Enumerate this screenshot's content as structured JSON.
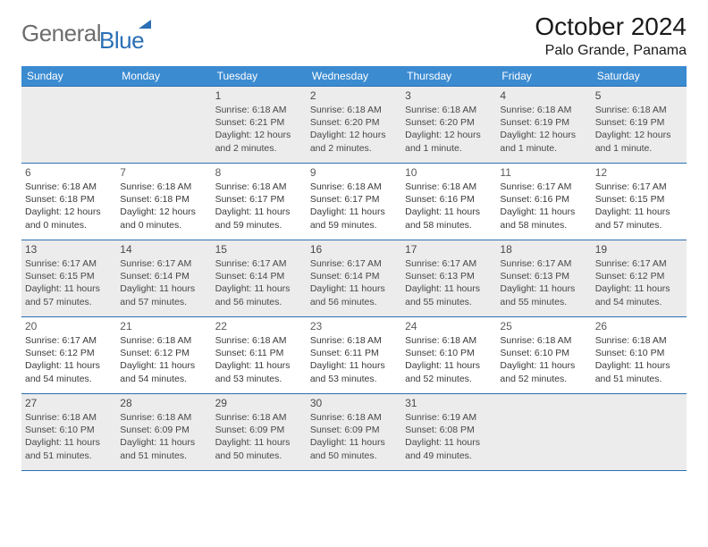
{
  "logo": {
    "word1": "General",
    "word2": "Blue"
  },
  "title": {
    "month": "October 2024",
    "location": "Palo Grande, Panama"
  },
  "colors": {
    "header_bg": "#3b8bd1",
    "header_text": "#ffffff",
    "rule": "#2a6fb5",
    "shaded_bg": "#ececec",
    "body_text": "#3a3a3a",
    "logo_gray": "#6d6d6d",
    "logo_blue": "#2a6fb5"
  },
  "dayHeaders": [
    "Sunday",
    "Monday",
    "Tuesday",
    "Wednesday",
    "Thursday",
    "Friday",
    "Saturday"
  ],
  "weeks": [
    [
      {
        "num": "",
        "lines": []
      },
      {
        "num": "",
        "lines": []
      },
      {
        "num": "1",
        "lines": [
          "Sunrise: 6:18 AM",
          "Sunset: 6:21 PM",
          "Daylight: 12 hours and 2 minutes."
        ]
      },
      {
        "num": "2",
        "lines": [
          "Sunrise: 6:18 AM",
          "Sunset: 6:20 PM",
          "Daylight: 12 hours and 2 minutes."
        ]
      },
      {
        "num": "3",
        "lines": [
          "Sunrise: 6:18 AM",
          "Sunset: 6:20 PM",
          "Daylight: 12 hours and 1 minute."
        ]
      },
      {
        "num": "4",
        "lines": [
          "Sunrise: 6:18 AM",
          "Sunset: 6:19 PM",
          "Daylight: 12 hours and 1 minute."
        ]
      },
      {
        "num": "5",
        "lines": [
          "Sunrise: 6:18 AM",
          "Sunset: 6:19 PM",
          "Daylight: 12 hours and 1 minute."
        ]
      }
    ],
    [
      {
        "num": "6",
        "lines": [
          "Sunrise: 6:18 AM",
          "Sunset: 6:18 PM",
          "Daylight: 12 hours and 0 minutes."
        ]
      },
      {
        "num": "7",
        "lines": [
          "Sunrise: 6:18 AM",
          "Sunset: 6:18 PM",
          "Daylight: 12 hours and 0 minutes."
        ]
      },
      {
        "num": "8",
        "lines": [
          "Sunrise: 6:18 AM",
          "Sunset: 6:17 PM",
          "Daylight: 11 hours and 59 minutes."
        ]
      },
      {
        "num": "9",
        "lines": [
          "Sunrise: 6:18 AM",
          "Sunset: 6:17 PM",
          "Daylight: 11 hours and 59 minutes."
        ]
      },
      {
        "num": "10",
        "lines": [
          "Sunrise: 6:18 AM",
          "Sunset: 6:16 PM",
          "Daylight: 11 hours and 58 minutes."
        ]
      },
      {
        "num": "11",
        "lines": [
          "Sunrise: 6:17 AM",
          "Sunset: 6:16 PM",
          "Daylight: 11 hours and 58 minutes."
        ]
      },
      {
        "num": "12",
        "lines": [
          "Sunrise: 6:17 AM",
          "Sunset: 6:15 PM",
          "Daylight: 11 hours and 57 minutes."
        ]
      }
    ],
    [
      {
        "num": "13",
        "lines": [
          "Sunrise: 6:17 AM",
          "Sunset: 6:15 PM",
          "Daylight: 11 hours and 57 minutes."
        ]
      },
      {
        "num": "14",
        "lines": [
          "Sunrise: 6:17 AM",
          "Sunset: 6:14 PM",
          "Daylight: 11 hours and 57 minutes."
        ]
      },
      {
        "num": "15",
        "lines": [
          "Sunrise: 6:17 AM",
          "Sunset: 6:14 PM",
          "Daylight: 11 hours and 56 minutes."
        ]
      },
      {
        "num": "16",
        "lines": [
          "Sunrise: 6:17 AM",
          "Sunset: 6:14 PM",
          "Daylight: 11 hours and 56 minutes."
        ]
      },
      {
        "num": "17",
        "lines": [
          "Sunrise: 6:17 AM",
          "Sunset: 6:13 PM",
          "Daylight: 11 hours and 55 minutes."
        ]
      },
      {
        "num": "18",
        "lines": [
          "Sunrise: 6:17 AM",
          "Sunset: 6:13 PM",
          "Daylight: 11 hours and 55 minutes."
        ]
      },
      {
        "num": "19",
        "lines": [
          "Sunrise: 6:17 AM",
          "Sunset: 6:12 PM",
          "Daylight: 11 hours and 54 minutes."
        ]
      }
    ],
    [
      {
        "num": "20",
        "lines": [
          "Sunrise: 6:17 AM",
          "Sunset: 6:12 PM",
          "Daylight: 11 hours and 54 minutes."
        ]
      },
      {
        "num": "21",
        "lines": [
          "Sunrise: 6:18 AM",
          "Sunset: 6:12 PM",
          "Daylight: 11 hours and 54 minutes."
        ]
      },
      {
        "num": "22",
        "lines": [
          "Sunrise: 6:18 AM",
          "Sunset: 6:11 PM",
          "Daylight: 11 hours and 53 minutes."
        ]
      },
      {
        "num": "23",
        "lines": [
          "Sunrise: 6:18 AM",
          "Sunset: 6:11 PM",
          "Daylight: 11 hours and 53 minutes."
        ]
      },
      {
        "num": "24",
        "lines": [
          "Sunrise: 6:18 AM",
          "Sunset: 6:10 PM",
          "Daylight: 11 hours and 52 minutes."
        ]
      },
      {
        "num": "25",
        "lines": [
          "Sunrise: 6:18 AM",
          "Sunset: 6:10 PM",
          "Daylight: 11 hours and 52 minutes."
        ]
      },
      {
        "num": "26",
        "lines": [
          "Sunrise: 6:18 AM",
          "Sunset: 6:10 PM",
          "Daylight: 11 hours and 51 minutes."
        ]
      }
    ],
    [
      {
        "num": "27",
        "lines": [
          "Sunrise: 6:18 AM",
          "Sunset: 6:10 PM",
          "Daylight: 11 hours and 51 minutes."
        ]
      },
      {
        "num": "28",
        "lines": [
          "Sunrise: 6:18 AM",
          "Sunset: 6:09 PM",
          "Daylight: 11 hours and 51 minutes."
        ]
      },
      {
        "num": "29",
        "lines": [
          "Sunrise: 6:18 AM",
          "Sunset: 6:09 PM",
          "Daylight: 11 hours and 50 minutes."
        ]
      },
      {
        "num": "30",
        "lines": [
          "Sunrise: 6:18 AM",
          "Sunset: 6:09 PM",
          "Daylight: 11 hours and 50 minutes."
        ]
      },
      {
        "num": "31",
        "lines": [
          "Sunrise: 6:19 AM",
          "Sunset: 6:08 PM",
          "Daylight: 11 hours and 49 minutes."
        ]
      },
      {
        "num": "",
        "lines": []
      },
      {
        "num": "",
        "lines": []
      }
    ]
  ],
  "shadedRows": [
    0,
    2,
    4
  ]
}
